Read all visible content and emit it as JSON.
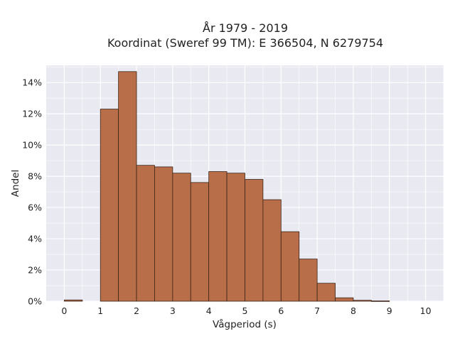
{
  "chart_data": {
    "type": "bar",
    "title_line1": "År 1979 - 2019",
    "title_line2": "Koordinat (Sweref 99 TM): E 366504, N 6279754",
    "xlabel": "Vågperiod (s)",
    "ylabel": "Andel",
    "bin_width": 0.5,
    "bins": [
      {
        "x0": 0.0,
        "x1": 0.5,
        "value": 0.08
      },
      {
        "x0": 0.5,
        "x1": 1.0,
        "value": 0.0
      },
      {
        "x0": 1.0,
        "x1": 1.5,
        "value": 12.3
      },
      {
        "x0": 1.5,
        "x1": 2.0,
        "value": 14.7
      },
      {
        "x0": 2.0,
        "x1": 2.5,
        "value": 8.7
      },
      {
        "x0": 2.5,
        "x1": 3.0,
        "value": 8.6
      },
      {
        "x0": 3.0,
        "x1": 3.5,
        "value": 8.2
      },
      {
        "x0": 3.5,
        "x1": 4.0,
        "value": 7.6
      },
      {
        "x0": 4.0,
        "x1": 4.5,
        "value": 8.3
      },
      {
        "x0": 4.5,
        "x1": 5.0,
        "value": 8.2
      },
      {
        "x0": 5.0,
        "x1": 5.5,
        "value": 7.8
      },
      {
        "x0": 5.5,
        "x1": 6.0,
        "value": 6.5
      },
      {
        "x0": 6.0,
        "x1": 6.5,
        "value": 4.45
      },
      {
        "x0": 6.5,
        "x1": 7.0,
        "value": 2.7
      },
      {
        "x0": 7.0,
        "x1": 7.5,
        "value": 1.15
      },
      {
        "x0": 7.5,
        "x1": 8.0,
        "value": 0.22
      },
      {
        "x0": 8.0,
        "x1": 8.5,
        "value": 0.06
      },
      {
        "x0": 8.5,
        "x1": 9.0,
        "value": 0.02
      }
    ],
    "xlim": [
      -0.5,
      10.5
    ],
    "ylim": [
      0,
      15.1
    ],
    "xticks": [
      0,
      1,
      2,
      3,
      4,
      5,
      6,
      7,
      8,
      9,
      10
    ],
    "xtick_labels": [
      "0",
      "1",
      "2",
      "3",
      "4",
      "5",
      "6",
      "7",
      "8",
      "9",
      "10"
    ],
    "yticks": [
      0,
      2,
      4,
      6,
      8,
      10,
      12,
      14
    ],
    "ytick_labels": [
      "0%",
      "2%",
      "4%",
      "6%",
      "8%",
      "10%",
      "12%",
      "14%"
    ],
    "grid": true,
    "colors": {
      "bar_fill": "#b86e48",
      "bar_edge": "#3b2418",
      "plot_background": "#e9e9f1",
      "grid": "#ffffff"
    }
  }
}
